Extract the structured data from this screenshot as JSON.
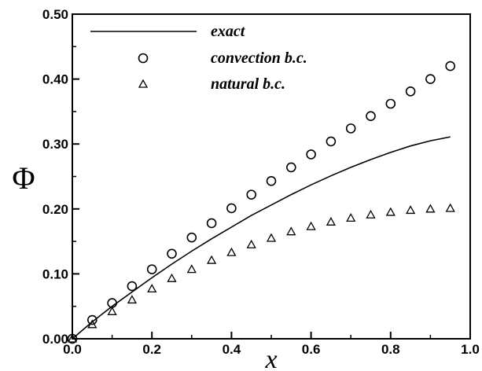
{
  "chart_data": {
    "type": "line",
    "xlabel": "x",
    "ylabel": "Φ",
    "xlim": [
      0.0,
      1.0
    ],
    "ylim": [
      0.0,
      0.5
    ],
    "x_ticks": [
      "0.0",
      "0.2",
      "0.4",
      "0.6",
      "0.8",
      "1.0"
    ],
    "y_ticks": [
      "0.00",
      "0.10",
      "0.20",
      "0.30",
      "0.40",
      "0.50"
    ],
    "legend_position": "top",
    "grid": false,
    "series": [
      {
        "name": "exact",
        "style": "line",
        "x": [
          0.0,
          0.05,
          0.1,
          0.15,
          0.2,
          0.25,
          0.3,
          0.35,
          0.4,
          0.45,
          0.5,
          0.55,
          0.6,
          0.65,
          0.7,
          0.75,
          0.8,
          0.85,
          0.9,
          0.95
        ],
        "y": [
          0.0,
          0.026,
          0.05,
          0.072,
          0.094,
          0.115,
          0.135,
          0.154,
          0.172,
          0.19,
          0.206,
          0.222,
          0.237,
          0.251,
          0.264,
          0.276,
          0.287,
          0.297,
          0.305,
          0.311
        ]
      },
      {
        "name": "convection b.c.",
        "style": "circle",
        "x": [
          0.0,
          0.05,
          0.1,
          0.15,
          0.2,
          0.25,
          0.3,
          0.35,
          0.4,
          0.45,
          0.5,
          0.55,
          0.6,
          0.65,
          0.7,
          0.75,
          0.8,
          0.85,
          0.9,
          0.95
        ],
        "y": [
          0.0,
          0.029,
          0.055,
          0.081,
          0.107,
          0.131,
          0.156,
          0.178,
          0.201,
          0.222,
          0.243,
          0.264,
          0.284,
          0.304,
          0.324,
          0.343,
          0.362,
          0.381,
          0.4,
          0.42
        ]
      },
      {
        "name": "natural b.c.",
        "style": "triangle",
        "x": [
          0.0,
          0.05,
          0.1,
          0.15,
          0.2,
          0.25,
          0.3,
          0.35,
          0.4,
          0.45,
          0.5,
          0.55,
          0.6,
          0.65,
          0.7,
          0.75,
          0.8,
          0.85,
          0.9,
          0.95
        ],
        "y": [
          0.0,
          0.022,
          0.042,
          0.06,
          0.077,
          0.093,
          0.107,
          0.121,
          0.133,
          0.145,
          0.155,
          0.165,
          0.173,
          0.18,
          0.186,
          0.191,
          0.195,
          0.198,
          0.2,
          0.201
        ]
      }
    ]
  }
}
